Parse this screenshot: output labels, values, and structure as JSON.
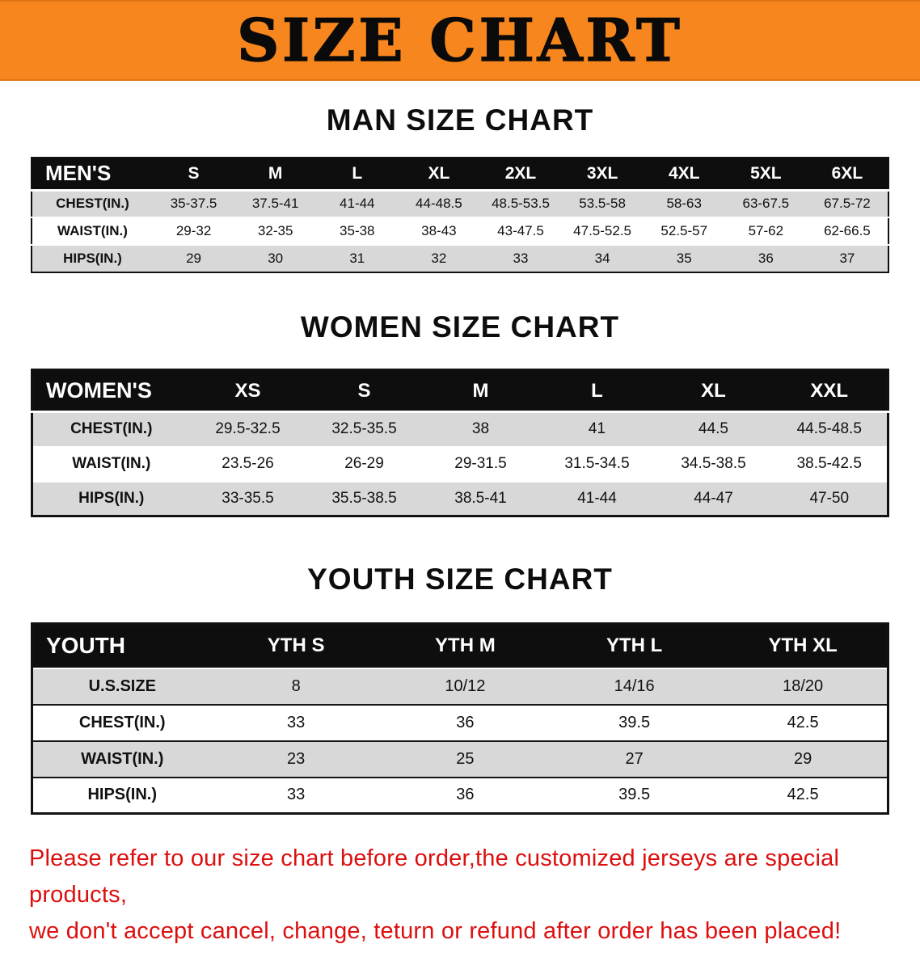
{
  "banner": {
    "title": "SIZE CHART"
  },
  "colors": {
    "banner_bg": "#f6861d",
    "header_bg": "#0e0e0e",
    "row_gray": "#d8d8d8",
    "disclaimer_red": "#dd0f0f"
  },
  "sections": [
    {
      "heading": "MAN SIZE CHART",
      "table": {
        "corner": "MEN'S",
        "columns": [
          "S",
          "M",
          "L",
          "XL",
          "2XL",
          "3XL",
          "4XL",
          "5XL",
          "6XL"
        ],
        "rows": [
          {
            "label": "CHEST(IN.)",
            "values": [
              "35-37.5",
              "37.5-41",
              "41-44",
              "44-48.5",
              "48.5-53.5",
              "53.5-58",
              "58-63",
              "63-67.5",
              "67.5-72"
            ]
          },
          {
            "label": "WAIST(IN.)",
            "values": [
              "29-32",
              "32-35",
              "35-38",
              "38-43",
              "43-47.5",
              "47.5-52.5",
              "52.5-57",
              "57-62",
              "62-66.5"
            ]
          },
          {
            "label": "HIPS(IN.)",
            "values": [
              "29",
              "30",
              "31",
              "32",
              "33",
              "34",
              "35",
              "36",
              "37"
            ]
          }
        ]
      }
    },
    {
      "heading": "WOMEN SIZE CHART",
      "table": {
        "corner": "WOMEN'S",
        "columns": [
          "XS",
          "S",
          "M",
          "L",
          "XL",
          "XXL"
        ],
        "rows": [
          {
            "label": "CHEST(IN.)",
            "values": [
              "29.5-32.5",
              "32.5-35.5",
              "38",
              "41",
              "44.5",
              "44.5-48.5"
            ]
          },
          {
            "label": "WAIST(IN.)",
            "values": [
              "23.5-26",
              "26-29",
              "29-31.5",
              "31.5-34.5",
              "34.5-38.5",
              "38.5-42.5"
            ]
          },
          {
            "label": "HIPS(IN.)",
            "values": [
              "33-35.5",
              "35.5-38.5",
              "38.5-41",
              "41-44",
              "44-47",
              "47-50"
            ]
          }
        ]
      }
    },
    {
      "heading": "YOUTH SIZE CHART",
      "table": {
        "corner": "YOUTH",
        "columns": [
          "YTH S",
          "YTH M",
          "YTH L",
          "YTH XL"
        ],
        "rows": [
          {
            "label": "U.S.SIZE",
            "values": [
              "8",
              "10/12",
              "14/16",
              "18/20"
            ]
          },
          {
            "label": "CHEST(IN.)",
            "values": [
              "33",
              "36",
              "39.5",
              "42.5"
            ]
          },
          {
            "label": "WAIST(IN.)",
            "values": [
              "23",
              "25",
              "27",
              "29"
            ]
          },
          {
            "label": "HIPS(IN.)",
            "values": [
              "33",
              "36",
              "39.5",
              "42.5"
            ]
          }
        ]
      }
    }
  ],
  "disclaimer": {
    "line1": "Please refer to our size chart before order,the customized jerseys are special products,",
    "line2": "we don't accept cancel, change, teturn or refund after order has been placed!"
  }
}
